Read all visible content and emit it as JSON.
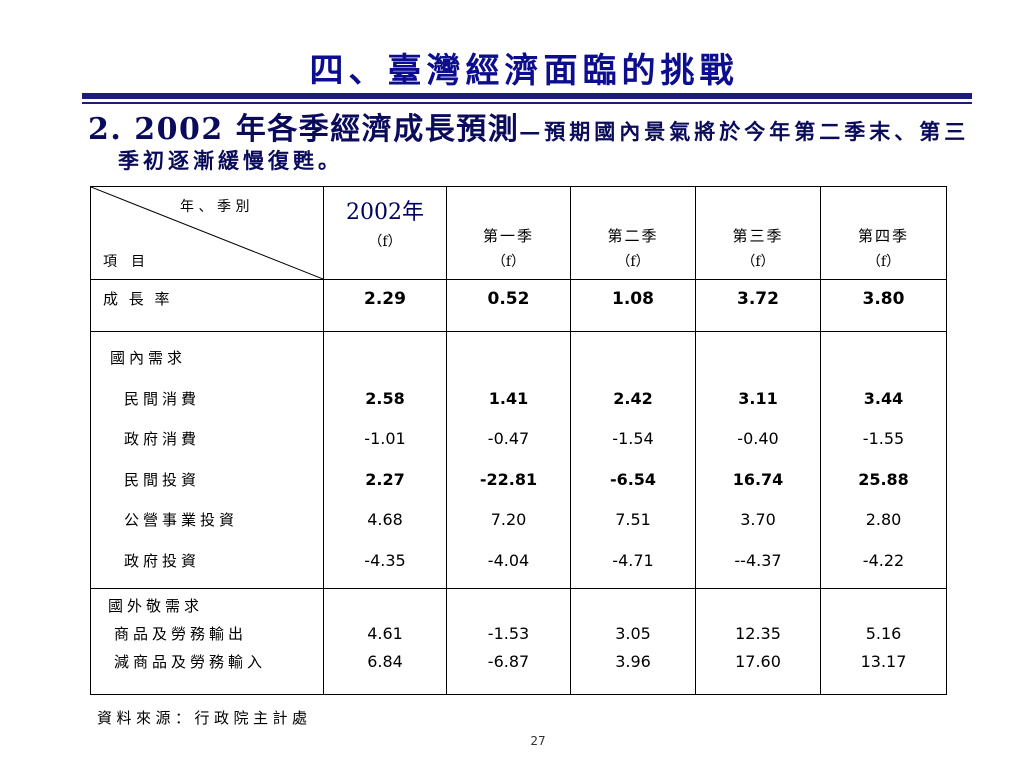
{
  "theme": {
    "title_color": "#0d0d8f",
    "rule_color": "#1c1c7c",
    "subtitle_color": "#0b0b5c",
    "header_year_color": "#00005e"
  },
  "slide": {
    "title": "四、臺灣經濟面臨的挑戰",
    "subtitle": {
      "heading": "2. 2002 年各季經濟成長預測",
      "note_line1": "—預期國內景氣將於今年第二季末、第三",
      "note_line2": "季初逐漸緩慢復甦。"
    },
    "source": "資料來源：行政院主計處",
    "page_number": "27"
  },
  "table": {
    "corner": {
      "period_label": "年、季別",
      "item_label": "項　目"
    },
    "columns": [
      {
        "label": "2002年",
        "note": "（f）"
      },
      {
        "label": "第一季",
        "note": "（f）"
      },
      {
        "label": "第二季",
        "note": "（f）"
      },
      {
        "label": "第三季",
        "note": "（f）"
      },
      {
        "label": "第四季",
        "note": "（f）"
      }
    ],
    "growth_rate": {
      "label": "成 長 率",
      "values": [
        "2.29",
        "0.52",
        "1.08",
        "3.72",
        "3.80"
      ]
    },
    "domestic_demand": {
      "label": "國內需求",
      "rows": [
        {
          "label": "民間消費",
          "values": [
            "2.58",
            "1.41",
            "2.42",
            "3.11",
            "3.44"
          ]
        },
        {
          "label": "政府消費",
          "values": [
            "-1.01",
            "-0.47",
            "-1.54",
            "-0.40",
            "-1.55"
          ]
        },
        {
          "label": "民間投資",
          "values": [
            "2.27",
            "-22.81",
            "-6.54",
            "16.74",
            "25.88"
          ]
        },
        {
          "label": "公營事業投資",
          "values": [
            "4.68",
            "7.20",
            "7.51",
            "3.70",
            "2.80"
          ]
        },
        {
          "label": "政府投資",
          "values": [
            "-4.35",
            "-4.04",
            "-4.71",
            "--4.37",
            "-4.22"
          ]
        }
      ]
    },
    "foreign_demand": {
      "label": "國外敬需求",
      "rows": [
        {
          "label": "商品及勞務輸出",
          "values": [
            "4.61",
            "-1.53",
            "3.05",
            "12.35",
            "5.16"
          ]
        },
        {
          "label": "減商品及勞務輸入",
          "values": [
            "6.84",
            "-6.87",
            "3.96",
            "17.60",
            "13.17"
          ]
        }
      ]
    }
  }
}
